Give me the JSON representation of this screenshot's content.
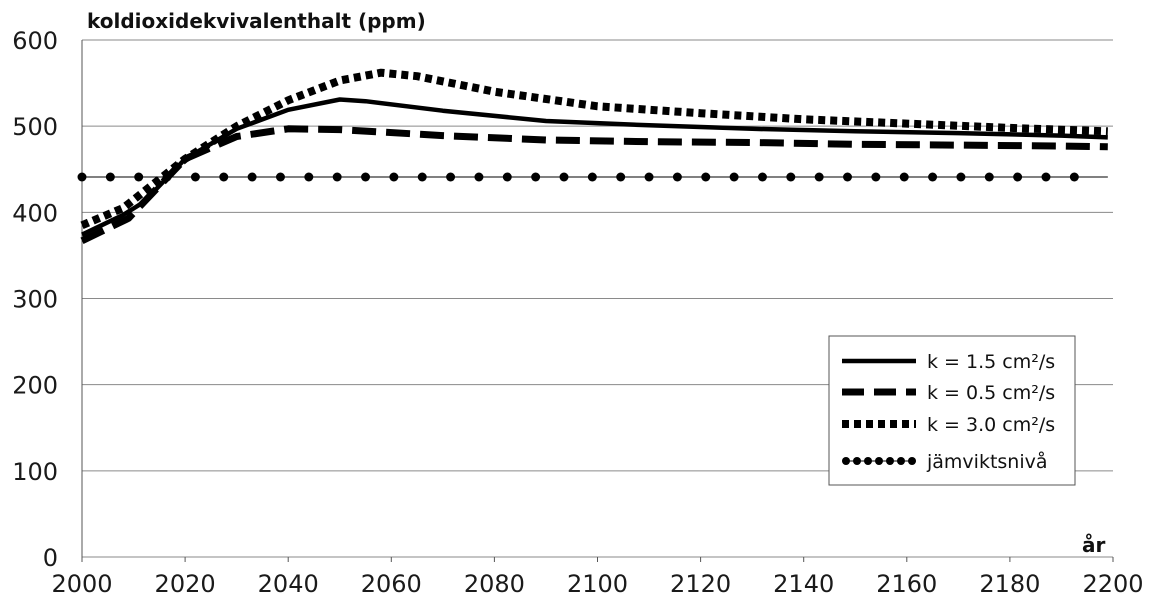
{
  "chart_data": {
    "type": "line",
    "ylabel": "koldioxidekvivalenthalt (ppm)",
    "xlabel": "år",
    "xlim": [
      2000,
      2200
    ],
    "ylim": [
      0,
      600
    ],
    "xticks": [
      2000,
      2020,
      2040,
      2060,
      2080,
      2100,
      2120,
      2140,
      2160,
      2180,
      2200
    ],
    "yticks": [
      0,
      100,
      200,
      300,
      400,
      500,
      600
    ],
    "grid": "horizontal",
    "legend_position": "right",
    "series": [
      {
        "name": "k = 1.5 cm²/s",
        "style": "solid",
        "color": "#000000",
        "points": [
          [
            2000,
            374
          ],
          [
            2008,
            397
          ],
          [
            2012,
            412
          ],
          [
            2020,
            462
          ],
          [
            2030,
            497
          ],
          [
            2040,
            519
          ],
          [
            2050,
            531
          ],
          [
            2055,
            529
          ],
          [
            2070,
            518
          ],
          [
            2090,
            506
          ],
          [
            2110,
            501
          ],
          [
            2130,
            497
          ],
          [
            2150,
            494
          ],
          [
            2170,
            492
          ],
          [
            2190,
            489
          ],
          [
            2199,
            487
          ]
        ]
      },
      {
        "name": "k = 0.5 cm²/s",
        "style": "dashed",
        "color": "#000000",
        "points": [
          [
            2000,
            367
          ],
          [
            2009,
            393
          ],
          [
            2020,
            462
          ],
          [
            2030,
            488
          ],
          [
            2040,
            497
          ],
          [
            2050,
            496
          ],
          [
            2070,
            489
          ],
          [
            2090,
            484
          ],
          [
            2110,
            482
          ],
          [
            2130,
            481
          ],
          [
            2150,
            479
          ],
          [
            2170,
            478
          ],
          [
            2190,
            477
          ],
          [
            2199,
            476
          ]
        ]
      },
      {
        "name": "k = 3.0 cm²/s",
        "style": "dotted",
        "color": "#000000",
        "points": [
          [
            2000,
            385
          ],
          [
            2008,
            405
          ],
          [
            2020,
            462
          ],
          [
            2030,
            500
          ],
          [
            2040,
            530
          ],
          [
            2050,
            553
          ],
          [
            2058,
            562
          ],
          [
            2065,
            558
          ],
          [
            2080,
            540
          ],
          [
            2100,
            523
          ],
          [
            2120,
            515
          ],
          [
            2140,
            508
          ],
          [
            2160,
            503
          ],
          [
            2180,
            498
          ],
          [
            2199,
            494
          ]
        ]
      },
      {
        "name": "jämviktsnivå",
        "style": "dot-marker",
        "color": "#000000",
        "points": [
          [
            2000,
            441
          ],
          [
            2199,
            441
          ]
        ]
      }
    ]
  }
}
